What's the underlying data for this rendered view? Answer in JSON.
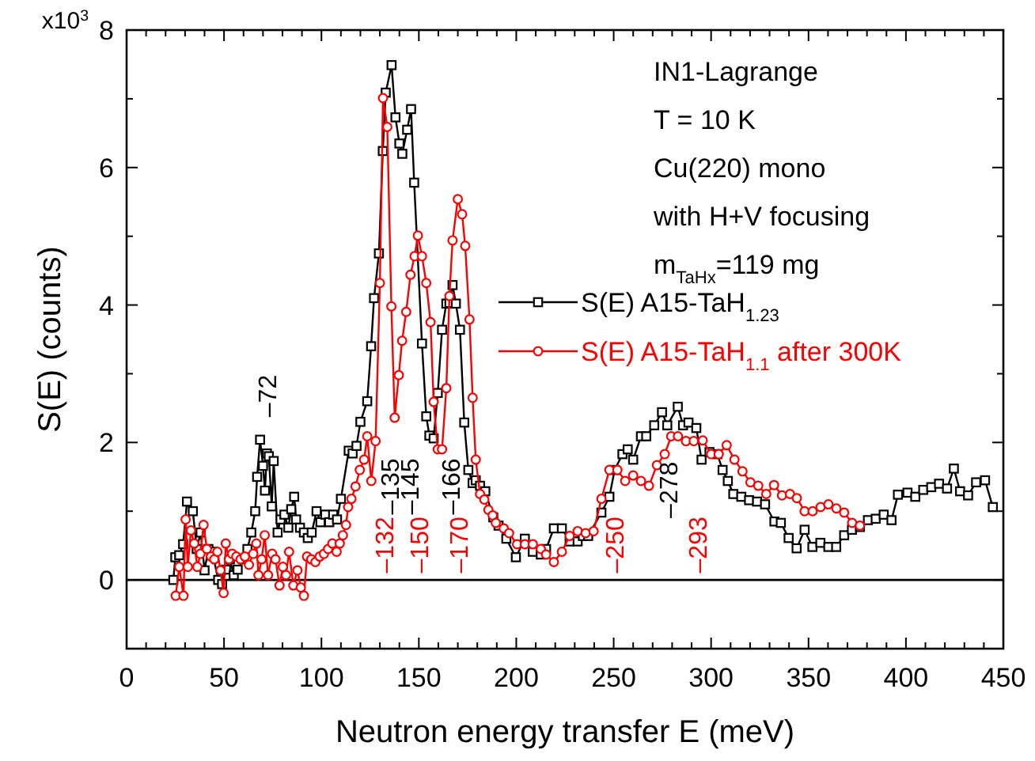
{
  "chart_data": {
    "type": "line",
    "xlabel": "Neutron energy transfer E (meV)",
    "ylabel": "S(E) (counts)",
    "xlim": [
      0,
      450
    ],
    "ylim": [
      -1,
      8
    ],
    "xticks": [
      0,
      {
        "value": 10,
        "label": null
      },
      {
        "value": 20,
        "label": null
      },
      {
        "value": 30,
        "label": null
      },
      {
        "value": 40,
        "label": null
      },
      50,
      {
        "value": 60,
        "label": null
      },
      {
        "value": 70,
        "label": null
      },
      {
        "value": 80,
        "label": null
      },
      {
        "value": 90,
        "label": null
      },
      100,
      {
        "value": 110,
        "label": null
      },
      {
        "value": 120,
        "label": null
      },
      {
        "value": 130,
        "label": null
      },
      {
        "value": 140,
        "label": null
      },
      150,
      {
        "value": 160,
        "label": null
      },
      {
        "value": 170,
        "label": null
      },
      {
        "value": 180,
        "label": null
      },
      {
        "value": 190,
        "label": null
      },
      200,
      {
        "value": 210,
        "label": null
      },
      {
        "value": 220,
        "label": null
      },
      {
        "value": 230,
        "label": null
      },
      {
        "value": 240,
        "label": null
      },
      250,
      {
        "value": 260,
        "label": null
      },
      {
        "value": 270,
        "label": null
      },
      {
        "value": 280,
        "label": null
      },
      {
        "value": 290,
        "label": null
      },
      300,
      {
        "value": 310,
        "label": null
      },
      {
        "value": 320,
        "label": null
      },
      {
        "value": 330,
        "label": null
      },
      {
        "value": 340,
        "label": null
      },
      350,
      {
        "value": 360,
        "label": null
      },
      {
        "value": 370,
        "label": null
      },
      {
        "value": 380,
        "label": null
      },
      {
        "value": 390,
        "label": null
      },
      400,
      {
        "value": 410,
        "label": null
      },
      {
        "value": 420,
        "label": null
      },
      {
        "value": 430,
        "label": null
      },
      {
        "value": 440,
        "label": null
      },
      450
    ],
    "yticks": [
      {
        "value": -1,
        "label": null
      },
      0,
      {
        "value": 1,
        "label": null
      },
      2,
      {
        "value": 3,
        "label": null
      },
      4,
      {
        "value": 5,
        "label": null
      },
      6,
      {
        "value": 7,
        "label": null
      },
      8
    ],
    "grid": false,
    "legend": "right",
    "line_style": "solid",
    "ref_lines": [
      {
        "axis": "y",
        "value": 0,
        "color": "#000000"
      }
    ],
    "annotations": [
      "x10$^{3}$",
      "IN1-Lagrange",
      "T = 10 K",
      "Cu(220) mono",
      "with H+V focusing",
      "m$_{TaHx}$=119 mg",
      "–72",
      "–135",
      "–145",
      "–166",
      "–278",
      "–132",
      "–150",
      "–170",
      "–250",
      "–293"
    ],
    "series": [
      {
        "name": "S(E) A15-TaH$_{1.23}$",
        "color": "#000000",
        "marker": "square",
        "x": [
          24,
          25,
          27,
          29,
          31,
          34,
          36,
          38,
          40,
          42,
          44,
          47,
          49,
          51,
          53,
          55,
          57,
          60,
          62,
          64,
          66,
          67,
          68.5,
          70,
          71,
          72,
          73,
          74.5,
          75.5,
          77.5,
          79,
          81,
          83,
          84.5,
          86,
          87,
          89,
          91,
          93,
          95,
          97.5,
          99.5,
          102,
          104,
          106,
          108,
          110,
          114,
          116,
          118,
          120,
          123.5,
          125.5,
          127,
          129.5,
          131.5,
          133,
          136,
          138,
          140,
          141.5,
          144,
          146,
          147.6,
          151.6,
          153.8,
          155.4,
          157.6,
          159.7,
          161.9,
          164.1,
          165.7,
          167.3,
          169,
          171.1,
          173.3,
          175.4,
          177.6,
          179.2,
          181.4,
          184.1,
          188.2,
          190.9,
          194.9,
          199.8,
          204.4,
          208.5,
          212.6,
          215.3,
          219.3,
          223.4,
          227.4,
          231.5,
          234.2,
          236.9,
          243.7,
          247.8,
          250.5,
          254.5,
          257.2,
          260,
          264,
          266.7,
          270.8,
          274.8,
          277.5,
          282.9,
          285.6,
          288.4,
          292.4,
          295.1,
          299.2,
          303.2,
          305.9,
          308.6,
          311.4,
          315.5,
          319.5,
          323.6,
          327.7,
          332.5,
          335.8,
          339.8,
          343.9,
          348,
          352,
          356.1,
          360.2,
          364.2,
          368.3,
          372.3,
          376.4,
          380.5,
          384.5,
          388.6,
          392.6,
          395.9,
          400.8,
          404.8,
          408.9,
          413,
          417,
          421.1,
          424.6,
          427.8,
          431.9,
          436,
          440.6,
          444.6
        ],
        "values": [
          0,
          0.33,
          0.36,
          0.52,
          1.14,
          1,
          0.45,
          0.69,
          0.14,
          0.45,
          0.41,
          0,
          -0.06,
          0.15,
          0.3,
          0.07,
          0.15,
          0.3,
          0.45,
          0.69,
          1,
          1.5,
          2.04,
          1.66,
          1.3,
          1.84,
          1.8,
          1.07,
          1.73,
          0.69,
          0.88,
          0.95,
          0.76,
          1.03,
          1.21,
          0.88,
          0.76,
          0.69,
          0.61,
          0.69,
          1,
          0.84,
          0.95,
          0.84,
          0.95,
          0.88,
          1.18,
          1.88,
          1.84,
          1.95,
          2.3,
          2.6,
          3.4,
          4.1,
          4.75,
          6.24,
          7.09,
          7.49,
          6.73,
          6.35,
          6.2,
          6.55,
          6.85,
          5.78,
          3.44,
          2.38,
          2.1,
          2.06,
          2.72,
          3.64,
          4.02,
          4.03,
          4.29,
          4.02,
          3.64,
          2.29,
          1.6,
          1.41,
          1.45,
          1.37,
          1.29,
          0.91,
          0.79,
          0.6,
          0.33,
          0.6,
          0.41,
          0.37,
          0.45,
          0.75,
          0.75,
          0.56,
          0.56,
          0.64,
          0.64,
          0.98,
          1.21,
          1.6,
          1.83,
          1.9,
          1.75,
          2.09,
          2.09,
          2.25,
          2.44,
          2.25,
          2.52,
          2.25,
          2.29,
          2.21,
          1.75,
          1.86,
          1.83,
          1.6,
          1.44,
          1.25,
          1.21,
          1.16,
          1.14,
          1.1,
          0.85,
          0.83,
          0.61,
          0.46,
          0.73,
          0.48,
          0.54,
          0.48,
          0.48,
          0.65,
          0.73,
          0.77,
          0.87,
          0.89,
          0.95,
          0.87,
          1.24,
          1.27,
          1.21,
          1.31,
          1.35,
          1.4,
          1.33,
          1.62,
          1.29,
          1.23,
          1.42,
          1.45,
          1.06
        ]
      },
      {
        "name": "S(E) A15-TaH$_{1.1}$ after 300K",
        "color": "#ff0000",
        "marker": "circle",
        "x": [
          25.2,
          27,
          29.2,
          30.3,
          31.4,
          33,
          34.7,
          36.3,
          37.9,
          39.5,
          41.2,
          43.3,
          45,
          46.6,
          48.2,
          49.8,
          50.9,
          52.5,
          54.2,
          56.3,
          58.5,
          60.7,
          62.8,
          65,
          66.6,
          67.7,
          69.3,
          70.9,
          72.6,
          74.7,
          76.4,
          78.5,
          80.2,
          81.8,
          83.4,
          85.6,
          87.7,
          89.4,
          91,
          92.6,
          94.8,
          96.9,
          99.1,
          101.3,
          103.4,
          105.6,
          107.8,
          109.4,
          111,
          112.6,
          113.7,
          115.4,
          117.5,
          119.7,
          121.9,
          123.5,
          125.6,
          127.8,
          130,
          131.6,
          133.8,
          135.9,
          137.6,
          139.7,
          141.4,
          143.5,
          145.7,
          147.8,
          149.5,
          151.6,
          153.8,
          156,
          157.6,
          159.7,
          161.9,
          164.1,
          165.7,
          167.3,
          170,
          172.2,
          173.8,
          176,
          177.6,
          179.2,
          181.4,
          183.6,
          185.7,
          187.9,
          189.5,
          193.6,
          196.3,
          200.4,
          204.4,
          208.5,
          212.6,
          215.3,
          219.3,
          223.4,
          227.4,
          231.5,
          235.6,
          239.7,
          243.7,
          247.8,
          251.9,
          255.9,
          260,
          264,
          268.1,
          272.2,
          276.2,
          279.5,
          283,
          287.1,
          291.1,
          295.7,
          300,
          303.9,
          308,
          312,
          316.1,
          320.2,
          324.2,
          328.3,
          332.3,
          336.4,
          340.5,
          344,
          348,
          352.1,
          356.2,
          360.2,
          364.3,
          368.3,
          372.4,
          376.4
        ],
        "values": [
          -0.23,
          0.19,
          -0.23,
          0.88,
          0.19,
          0.72,
          0.53,
          0.19,
          0.38,
          0.8,
          0.45,
          0.34,
          0.3,
          0.41,
          0.14,
          -0.19,
          0.53,
          0.3,
          0.38,
          0.34,
          0.3,
          0.34,
          0.22,
          0.38,
          0.53,
          0.07,
          0.3,
          0.65,
          0.07,
          0.38,
          0.3,
          -0.08,
          0.19,
          0.07,
          0.41,
          -0.08,
          0.14,
          -0.11,
          -0.23,
          0.34,
          0.3,
          0.26,
          0.34,
          0.38,
          0.45,
          0.53,
          0.41,
          0.53,
          0.65,
          0.8,
          1.06,
          1.18,
          1.36,
          1.6,
          1.75,
          2.09,
          1.44,
          2.02,
          4.32,
          7.01,
          6.59,
          3.98,
          2.36,
          2.98,
          3.48,
          3.9,
          4.44,
          4.71,
          5.01,
          4.71,
          4.32,
          3.75,
          2.59,
          1.9,
          1.9,
          2.79,
          4.13,
          4.94,
          5.54,
          5.32,
          4.86,
          3.79,
          2.65,
          1.75,
          1.25,
          1.17,
          1.02,
          0.94,
          0.83,
          0.75,
          0.68,
          0.52,
          0.52,
          0.52,
          0.45,
          0.37,
          0.26,
          0.41,
          0.64,
          0.71,
          0.68,
          0.71,
          1.18,
          1.6,
          1.6,
          1.44,
          1.52,
          1.44,
          1.37,
          1.67,
          1.83,
          2.09,
          2.09,
          2.02,
          2.02,
          2.03,
          1.83,
          1.83,
          1.96,
          1.75,
          1.58,
          1.42,
          1.37,
          1.25,
          1.38,
          1.23,
          1.25,
          1.19,
          1,
          1,
          1.06,
          1.1,
          1.04,
          0.98,
          0.83,
          0.79
        ]
      }
    ]
  }
}
